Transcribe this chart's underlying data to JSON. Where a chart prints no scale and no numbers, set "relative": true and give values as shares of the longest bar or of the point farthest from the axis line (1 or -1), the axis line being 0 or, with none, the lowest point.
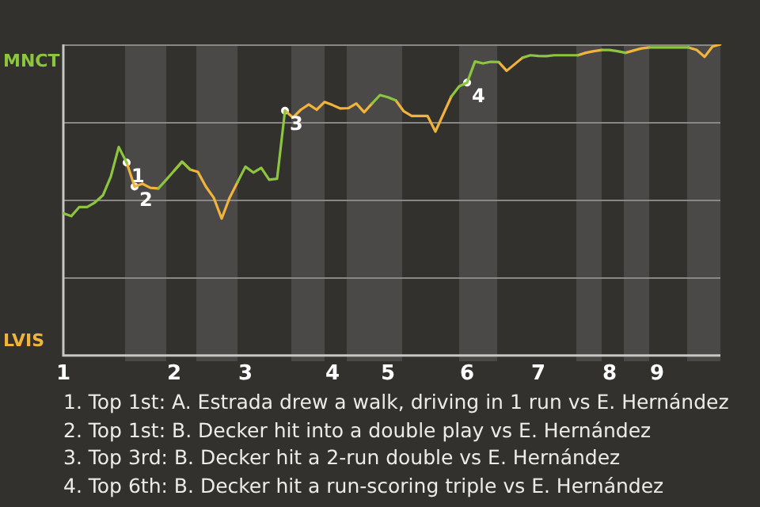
{
  "chart_data": {
    "type": "line",
    "relative": true,
    "categories": [
      "1",
      null,
      null,
      null,
      null,
      null,
      null,
      null,
      null,
      null,
      null,
      null,
      null,
      null,
      "2",
      null,
      null,
      null,
      null,
      null,
      null,
      null,
      null,
      "3",
      null,
      null,
      null,
      null,
      null,
      null,
      null,
      null,
      null,
      null,
      "4",
      null,
      null,
      null,
      null,
      null,
      null,
      "5",
      null,
      null,
      null,
      null,
      null,
      null,
      null,
      null,
      null,
      "6",
      null,
      null,
      null,
      null,
      null,
      null,
      null,
      null,
      "7",
      null,
      null,
      null,
      null,
      null,
      null,
      null,
      null,
      "8",
      null,
      null,
      null,
      null,
      null,
      "9",
      null,
      null,
      null,
      null,
      null,
      null,
      null,
      null
    ],
    "series": [
      {
        "color": "#8cc63e",
        "values": [
          0.457,
          0.448,
          0.477,
          0.477,
          0.492,
          0.515,
          0.575,
          0.67,
          0.62,
          null,
          null,
          null,
          0.537,
          0.565,
          0.594,
          0.623,
          0.598,
          null,
          null,
          null,
          null,
          null,
          0.557,
          0.607,
          0.588,
          0.603,
          0.565,
          0.568,
          0.787,
          null,
          null,
          null,
          null,
          null,
          null,
          null,
          null,
          null,
          null,
          0.81,
          0.837,
          0.83,
          0.82,
          null,
          null,
          null,
          null,
          null,
          null,
          0.832,
          0.865,
          0.877,
          0.945,
          0.939,
          0.944,
          0.943,
          null,
          null,
          0.957,
          0.965,
          0.963,
          0.962,
          0.965,
          0.965,
          0.965,
          0.965,
          null,
          null,
          0.982,
          0.982,
          0.978,
          0.973,
          null,
          null,
          0.99,
          0.99,
          0.99,
          0.99,
          0.99,
          0.99,
          null,
          null,
          null,
          null
        ]
      },
      {
        "color": "#f0b43c",
        "values": [
          null,
          null,
          null,
          null,
          null,
          null,
          null,
          null,
          0.62,
          0.543,
          0.552,
          0.539,
          0.537,
          null,
          0.594,
          0.623,
          0.598,
          0.59,
          0.543,
          0.507,
          0.44,
          0.507,
          0.557,
          null,
          null,
          null,
          null,
          null,
          0.787,
          0.765,
          0.79,
          0.807,
          0.79,
          0.815,
          0.805,
          0.794,
          0.795,
          0.81,
          0.782,
          0.81,
          null,
          null,
          0.82,
          0.785,
          0.77,
          0.77,
          0.77,
          0.72,
          0.776,
          0.832,
          null,
          null,
          null,
          null,
          null,
          0.943,
          0.915,
          0.936,
          0.957,
          null,
          null,
          null,
          null,
          null,
          null,
          0.965,
          0.973,
          0.978,
          0.982,
          null,
          null,
          0.973,
          0.98,
          0.987,
          0.99,
          null,
          null,
          null,
          null,
          0.99,
          0.982,
          0.96,
          0.993,
          1
        ]
      },
      {
        "name": "1",
        "type": "scatter",
        "marker": "circle",
        "color": "#ffffff",
        "values": [
          null,
          null,
          null,
          null,
          null,
          null,
          null,
          null,
          0.62,
          null,
          null,
          null,
          null,
          null,
          null,
          null,
          null,
          null,
          null,
          null,
          null,
          null,
          null,
          null,
          null,
          null,
          null,
          null,
          null,
          null,
          null,
          null,
          null,
          null,
          null,
          null,
          null,
          null,
          null,
          null,
          null,
          null,
          null,
          null,
          null,
          null,
          null,
          null,
          null,
          null,
          null,
          null,
          null,
          null,
          null,
          null,
          null,
          null,
          null,
          null,
          null,
          null,
          null,
          null,
          null,
          null,
          null,
          null,
          null,
          null,
          null,
          null,
          null,
          null,
          null,
          null,
          null,
          null,
          null,
          null,
          null,
          null,
          null,
          null
        ]
      },
      {
        "name": "2",
        "type": "scatter",
        "marker": "circle",
        "color": "#ffffff",
        "values": [
          null,
          null,
          null,
          null,
          null,
          null,
          null,
          null,
          null,
          0.543,
          null,
          null,
          null,
          null,
          null,
          null,
          null,
          null,
          null,
          null,
          null,
          null,
          null,
          null,
          null,
          null,
          null,
          null,
          null,
          null,
          null,
          null,
          null,
          null,
          null,
          null,
          null,
          null,
          null,
          null,
          null,
          null,
          null,
          null,
          null,
          null,
          null,
          null,
          null,
          null,
          null,
          null,
          null,
          null,
          null,
          null,
          null,
          null,
          null,
          null,
          null,
          null,
          null,
          null,
          null,
          null,
          null,
          null,
          null,
          null,
          null,
          null,
          null,
          null,
          null,
          null,
          null,
          null,
          null,
          null,
          null,
          null,
          null,
          null
        ]
      },
      {
        "name": "3",
        "type": "scatter",
        "marker": "circle",
        "color": "#ffffff",
        "values": [
          null,
          null,
          null,
          null,
          null,
          null,
          null,
          null,
          null,
          null,
          null,
          null,
          null,
          null,
          null,
          null,
          null,
          null,
          null,
          null,
          null,
          null,
          null,
          null,
          null,
          null,
          null,
          null,
          0.787,
          null,
          null,
          null,
          null,
          null,
          null,
          null,
          null,
          null,
          null,
          null,
          null,
          null,
          null,
          null,
          null,
          null,
          null,
          null,
          null,
          null,
          null,
          null,
          null,
          null,
          null,
          null,
          null,
          null,
          null,
          null,
          null,
          null,
          null,
          null,
          null,
          null,
          null,
          null,
          null,
          null,
          null,
          null,
          null,
          null,
          null,
          null,
          null,
          null,
          null,
          null,
          null,
          null,
          null,
          null
        ]
      },
      {
        "name": "4",
        "type": "scatter",
        "marker": "circle",
        "color": "#ffffff",
        "values": [
          null,
          null,
          null,
          null,
          null,
          null,
          null,
          null,
          null,
          null,
          null,
          null,
          null,
          null,
          null,
          null,
          null,
          null,
          null,
          null,
          null,
          null,
          null,
          null,
          null,
          null,
          null,
          null,
          null,
          null,
          null,
          null,
          null,
          null,
          null,
          null,
          null,
          null,
          null,
          null,
          null,
          null,
          null,
          null,
          null,
          null,
          null,
          null,
          null,
          null,
          null,
          0.877,
          null,
          null,
          null,
          null,
          null,
          null,
          null,
          null,
          null,
          null,
          null,
          null,
          null,
          null,
          null,
          null,
          null,
          null,
          null,
          null,
          null,
          null,
          null,
          null,
          null,
          null,
          null,
          null,
          null,
          null,
          null,
          null
        ]
      }
    ],
    "ref_lines": [
      {
        "axis": "y",
        "value": 0.25,
        "color": "#8a8885"
      },
      {
        "axis": "y",
        "value": 0.5,
        "color": "#8a8885"
      },
      {
        "axis": "y",
        "value": 0.75,
        "color": "#8a8885"
      },
      {
        "axis": "y",
        "value": 1,
        "color": "#8a8885"
      }
    ],
    "marker": "none",
    "line_style": "solid",
    "annotations": [
      "MNCT",
      "LVIS",
      "1. Top 1st: A. Estrada drew a walk, driving in 1 run vs E. Hernández",
      "2. Top 1st: B. Decker hit into a double play vs E. Hernández",
      "3. Top 3rd: B. Decker hit a 2-run double vs E. Hernández",
      "4. Top 6th: B. Decker hit a run-scoring triple vs E. Hernández"
    ]
  }
}
